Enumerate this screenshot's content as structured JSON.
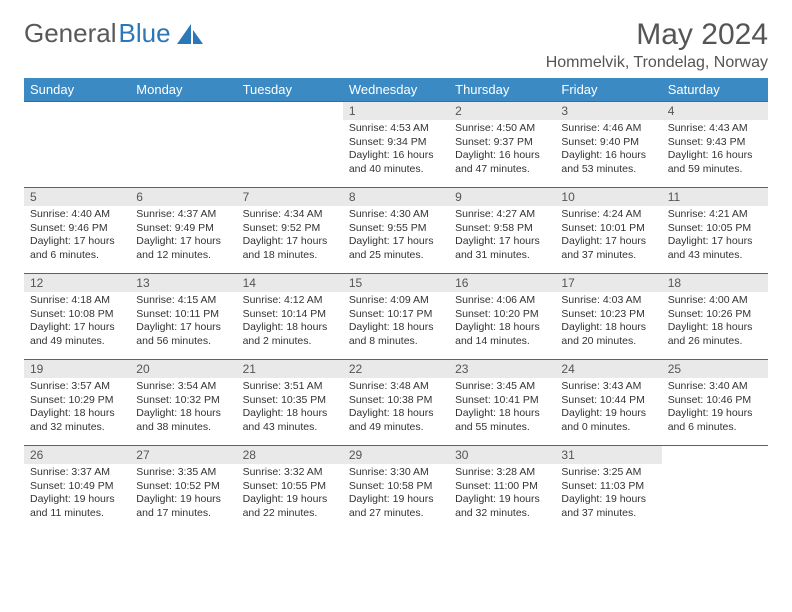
{
  "logo": {
    "text1": "General",
    "text2": "Blue"
  },
  "title": "May 2024",
  "location": "Hommelvik, Trondelag, Norway",
  "colors": {
    "header_bg": "#3b8ac4",
    "header_text": "#ffffff",
    "row_border": "#2c6fa8",
    "daynum_bg": "#e9e9e9",
    "logo_gray": "#58595b",
    "logo_blue": "#2c77b8"
  },
  "weekdays": [
    "Sunday",
    "Monday",
    "Tuesday",
    "Wednesday",
    "Thursday",
    "Friday",
    "Saturday"
  ],
  "weeks": [
    [
      {
        "n": "",
        "sr": "",
        "ss": "",
        "dl1": "",
        "dl2": ""
      },
      {
        "n": "",
        "sr": "",
        "ss": "",
        "dl1": "",
        "dl2": ""
      },
      {
        "n": "",
        "sr": "",
        "ss": "",
        "dl1": "",
        "dl2": ""
      },
      {
        "n": "1",
        "sr": "Sunrise: 4:53 AM",
        "ss": "Sunset: 9:34 PM",
        "dl1": "Daylight: 16 hours",
        "dl2": "and 40 minutes."
      },
      {
        "n": "2",
        "sr": "Sunrise: 4:50 AM",
        "ss": "Sunset: 9:37 PM",
        "dl1": "Daylight: 16 hours",
        "dl2": "and 47 minutes."
      },
      {
        "n": "3",
        "sr": "Sunrise: 4:46 AM",
        "ss": "Sunset: 9:40 PM",
        "dl1": "Daylight: 16 hours",
        "dl2": "and 53 minutes."
      },
      {
        "n": "4",
        "sr": "Sunrise: 4:43 AM",
        "ss": "Sunset: 9:43 PM",
        "dl1": "Daylight: 16 hours",
        "dl2": "and 59 minutes."
      }
    ],
    [
      {
        "n": "5",
        "sr": "Sunrise: 4:40 AM",
        "ss": "Sunset: 9:46 PM",
        "dl1": "Daylight: 17 hours",
        "dl2": "and 6 minutes."
      },
      {
        "n": "6",
        "sr": "Sunrise: 4:37 AM",
        "ss": "Sunset: 9:49 PM",
        "dl1": "Daylight: 17 hours",
        "dl2": "and 12 minutes."
      },
      {
        "n": "7",
        "sr": "Sunrise: 4:34 AM",
        "ss": "Sunset: 9:52 PM",
        "dl1": "Daylight: 17 hours",
        "dl2": "and 18 minutes."
      },
      {
        "n": "8",
        "sr": "Sunrise: 4:30 AM",
        "ss": "Sunset: 9:55 PM",
        "dl1": "Daylight: 17 hours",
        "dl2": "and 25 minutes."
      },
      {
        "n": "9",
        "sr": "Sunrise: 4:27 AM",
        "ss": "Sunset: 9:58 PM",
        "dl1": "Daylight: 17 hours",
        "dl2": "and 31 minutes."
      },
      {
        "n": "10",
        "sr": "Sunrise: 4:24 AM",
        "ss": "Sunset: 10:01 PM",
        "dl1": "Daylight: 17 hours",
        "dl2": "and 37 minutes."
      },
      {
        "n": "11",
        "sr": "Sunrise: 4:21 AM",
        "ss": "Sunset: 10:05 PM",
        "dl1": "Daylight: 17 hours",
        "dl2": "and 43 minutes."
      }
    ],
    [
      {
        "n": "12",
        "sr": "Sunrise: 4:18 AM",
        "ss": "Sunset: 10:08 PM",
        "dl1": "Daylight: 17 hours",
        "dl2": "and 49 minutes."
      },
      {
        "n": "13",
        "sr": "Sunrise: 4:15 AM",
        "ss": "Sunset: 10:11 PM",
        "dl1": "Daylight: 17 hours",
        "dl2": "and 56 minutes."
      },
      {
        "n": "14",
        "sr": "Sunrise: 4:12 AM",
        "ss": "Sunset: 10:14 PM",
        "dl1": "Daylight: 18 hours",
        "dl2": "and 2 minutes."
      },
      {
        "n": "15",
        "sr": "Sunrise: 4:09 AM",
        "ss": "Sunset: 10:17 PM",
        "dl1": "Daylight: 18 hours",
        "dl2": "and 8 minutes."
      },
      {
        "n": "16",
        "sr": "Sunrise: 4:06 AM",
        "ss": "Sunset: 10:20 PM",
        "dl1": "Daylight: 18 hours",
        "dl2": "and 14 minutes."
      },
      {
        "n": "17",
        "sr": "Sunrise: 4:03 AM",
        "ss": "Sunset: 10:23 PM",
        "dl1": "Daylight: 18 hours",
        "dl2": "and 20 minutes."
      },
      {
        "n": "18",
        "sr": "Sunrise: 4:00 AM",
        "ss": "Sunset: 10:26 PM",
        "dl1": "Daylight: 18 hours",
        "dl2": "and 26 minutes."
      }
    ],
    [
      {
        "n": "19",
        "sr": "Sunrise: 3:57 AM",
        "ss": "Sunset: 10:29 PM",
        "dl1": "Daylight: 18 hours",
        "dl2": "and 32 minutes."
      },
      {
        "n": "20",
        "sr": "Sunrise: 3:54 AM",
        "ss": "Sunset: 10:32 PM",
        "dl1": "Daylight: 18 hours",
        "dl2": "and 38 minutes."
      },
      {
        "n": "21",
        "sr": "Sunrise: 3:51 AM",
        "ss": "Sunset: 10:35 PM",
        "dl1": "Daylight: 18 hours",
        "dl2": "and 43 minutes."
      },
      {
        "n": "22",
        "sr": "Sunrise: 3:48 AM",
        "ss": "Sunset: 10:38 PM",
        "dl1": "Daylight: 18 hours",
        "dl2": "and 49 minutes."
      },
      {
        "n": "23",
        "sr": "Sunrise: 3:45 AM",
        "ss": "Sunset: 10:41 PM",
        "dl1": "Daylight: 18 hours",
        "dl2": "and 55 minutes."
      },
      {
        "n": "24",
        "sr": "Sunrise: 3:43 AM",
        "ss": "Sunset: 10:44 PM",
        "dl1": "Daylight: 19 hours",
        "dl2": "and 0 minutes."
      },
      {
        "n": "25",
        "sr": "Sunrise: 3:40 AM",
        "ss": "Sunset: 10:46 PM",
        "dl1": "Daylight: 19 hours",
        "dl2": "and 6 minutes."
      }
    ],
    [
      {
        "n": "26",
        "sr": "Sunrise: 3:37 AM",
        "ss": "Sunset: 10:49 PM",
        "dl1": "Daylight: 19 hours",
        "dl2": "and 11 minutes."
      },
      {
        "n": "27",
        "sr": "Sunrise: 3:35 AM",
        "ss": "Sunset: 10:52 PM",
        "dl1": "Daylight: 19 hours",
        "dl2": "and 17 minutes."
      },
      {
        "n": "28",
        "sr": "Sunrise: 3:32 AM",
        "ss": "Sunset: 10:55 PM",
        "dl1": "Daylight: 19 hours",
        "dl2": "and 22 minutes."
      },
      {
        "n": "29",
        "sr": "Sunrise: 3:30 AM",
        "ss": "Sunset: 10:58 PM",
        "dl1": "Daylight: 19 hours",
        "dl2": "and 27 minutes."
      },
      {
        "n": "30",
        "sr": "Sunrise: 3:28 AM",
        "ss": "Sunset: 11:00 PM",
        "dl1": "Daylight: 19 hours",
        "dl2": "and 32 minutes."
      },
      {
        "n": "31",
        "sr": "Sunrise: 3:25 AM",
        "ss": "Sunset: 11:03 PM",
        "dl1": "Daylight: 19 hours",
        "dl2": "and 37 minutes."
      },
      {
        "n": "",
        "sr": "",
        "ss": "",
        "dl1": "",
        "dl2": ""
      }
    ]
  ]
}
